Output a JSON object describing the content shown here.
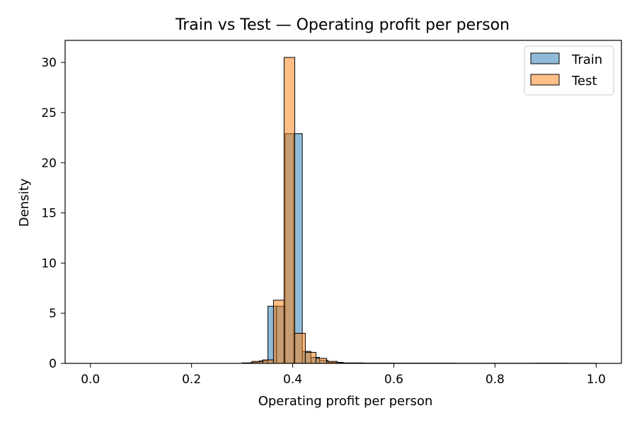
{
  "chart_data": {
    "type": "histogram",
    "title": "Train vs Test —  Operating profit per person",
    "xlabel": "Operating profit per person",
    "ylabel": "Density",
    "xlim": [
      -0.05,
      1.05
    ],
    "ylim": [
      0,
      32.2
    ],
    "xticks": [
      "0.0",
      "0.2",
      "0.4",
      "0.6",
      "0.8",
      "1.0"
    ],
    "yticks": [
      "0",
      "5",
      "10",
      "15",
      "20",
      "25",
      "30"
    ],
    "legend_position": "top-right",
    "series": [
      {
        "name": "Train",
        "color": "#1f77b4",
        "bins": [
          {
            "x0": 0.0,
            "x1": 0.3,
            "value": 0.0
          },
          {
            "x0": 0.3,
            "x1": 0.317,
            "value": 0.05
          },
          {
            "x0": 0.317,
            "x1": 0.334,
            "value": 0.1
          },
          {
            "x0": 0.334,
            "x1": 0.351,
            "value": 0.25
          },
          {
            "x0": 0.351,
            "x1": 0.368,
            "value": 5.7
          },
          {
            "x0": 0.368,
            "x1": 0.385,
            "value": 5.7
          },
          {
            "x0": 0.385,
            "x1": 0.402,
            "value": 22.9
          },
          {
            "x0": 0.402,
            "x1": 0.419,
            "value": 22.9
          },
          {
            "x0": 0.419,
            "x1": 0.436,
            "value": 1.2
          },
          {
            "x0": 0.436,
            "x1": 0.453,
            "value": 0.6
          },
          {
            "x0": 0.453,
            "x1": 0.47,
            "value": 0.3
          },
          {
            "x0": 0.47,
            "x1": 0.5,
            "value": 0.1
          },
          {
            "x0": 0.5,
            "x1": 0.56,
            "value": 0.03
          },
          {
            "x0": 0.56,
            "x1": 0.65,
            "value": 0.02
          },
          {
            "x0": 0.65,
            "x1": 0.72,
            "value": 0.02
          },
          {
            "x0": 0.72,
            "x1": 0.8,
            "value": 0.01
          },
          {
            "x0": 0.8,
            "x1": 0.88,
            "value": 0.01
          },
          {
            "x0": 0.88,
            "x1": 0.945,
            "value": 0.02
          },
          {
            "x0": 0.945,
            "x1": 1.0,
            "value": 0.01
          }
        ]
      },
      {
        "name": "Test",
        "color": "#ff7f0e",
        "bins": [
          {
            "x0": 0.0,
            "x1": 0.32,
            "value": 0.0
          },
          {
            "x0": 0.32,
            "x1": 0.341,
            "value": 0.2
          },
          {
            "x0": 0.341,
            "x1": 0.362,
            "value": 0.35
          },
          {
            "x0": 0.362,
            "x1": 0.383,
            "value": 6.3
          },
          {
            "x0": 0.383,
            "x1": 0.404,
            "value": 30.5
          },
          {
            "x0": 0.404,
            "x1": 0.425,
            "value": 3.0
          },
          {
            "x0": 0.425,
            "x1": 0.446,
            "value": 1.1
          },
          {
            "x0": 0.446,
            "x1": 0.467,
            "value": 0.5
          },
          {
            "x0": 0.467,
            "x1": 0.488,
            "value": 0.2
          },
          {
            "x0": 0.488,
            "x1": 0.54,
            "value": 0.05
          },
          {
            "x0": 0.54,
            "x1": 0.6,
            "value": 0.02
          },
          {
            "x0": 0.6,
            "x1": 0.7,
            "value": 0.01
          },
          {
            "x0": 0.7,
            "x1": 0.8,
            "value": 0.01
          },
          {
            "x0": 0.8,
            "x1": 0.9,
            "value": 0.01
          },
          {
            "x0": 0.9,
            "x1": 1.0,
            "value": 0.01
          }
        ]
      }
    ]
  }
}
